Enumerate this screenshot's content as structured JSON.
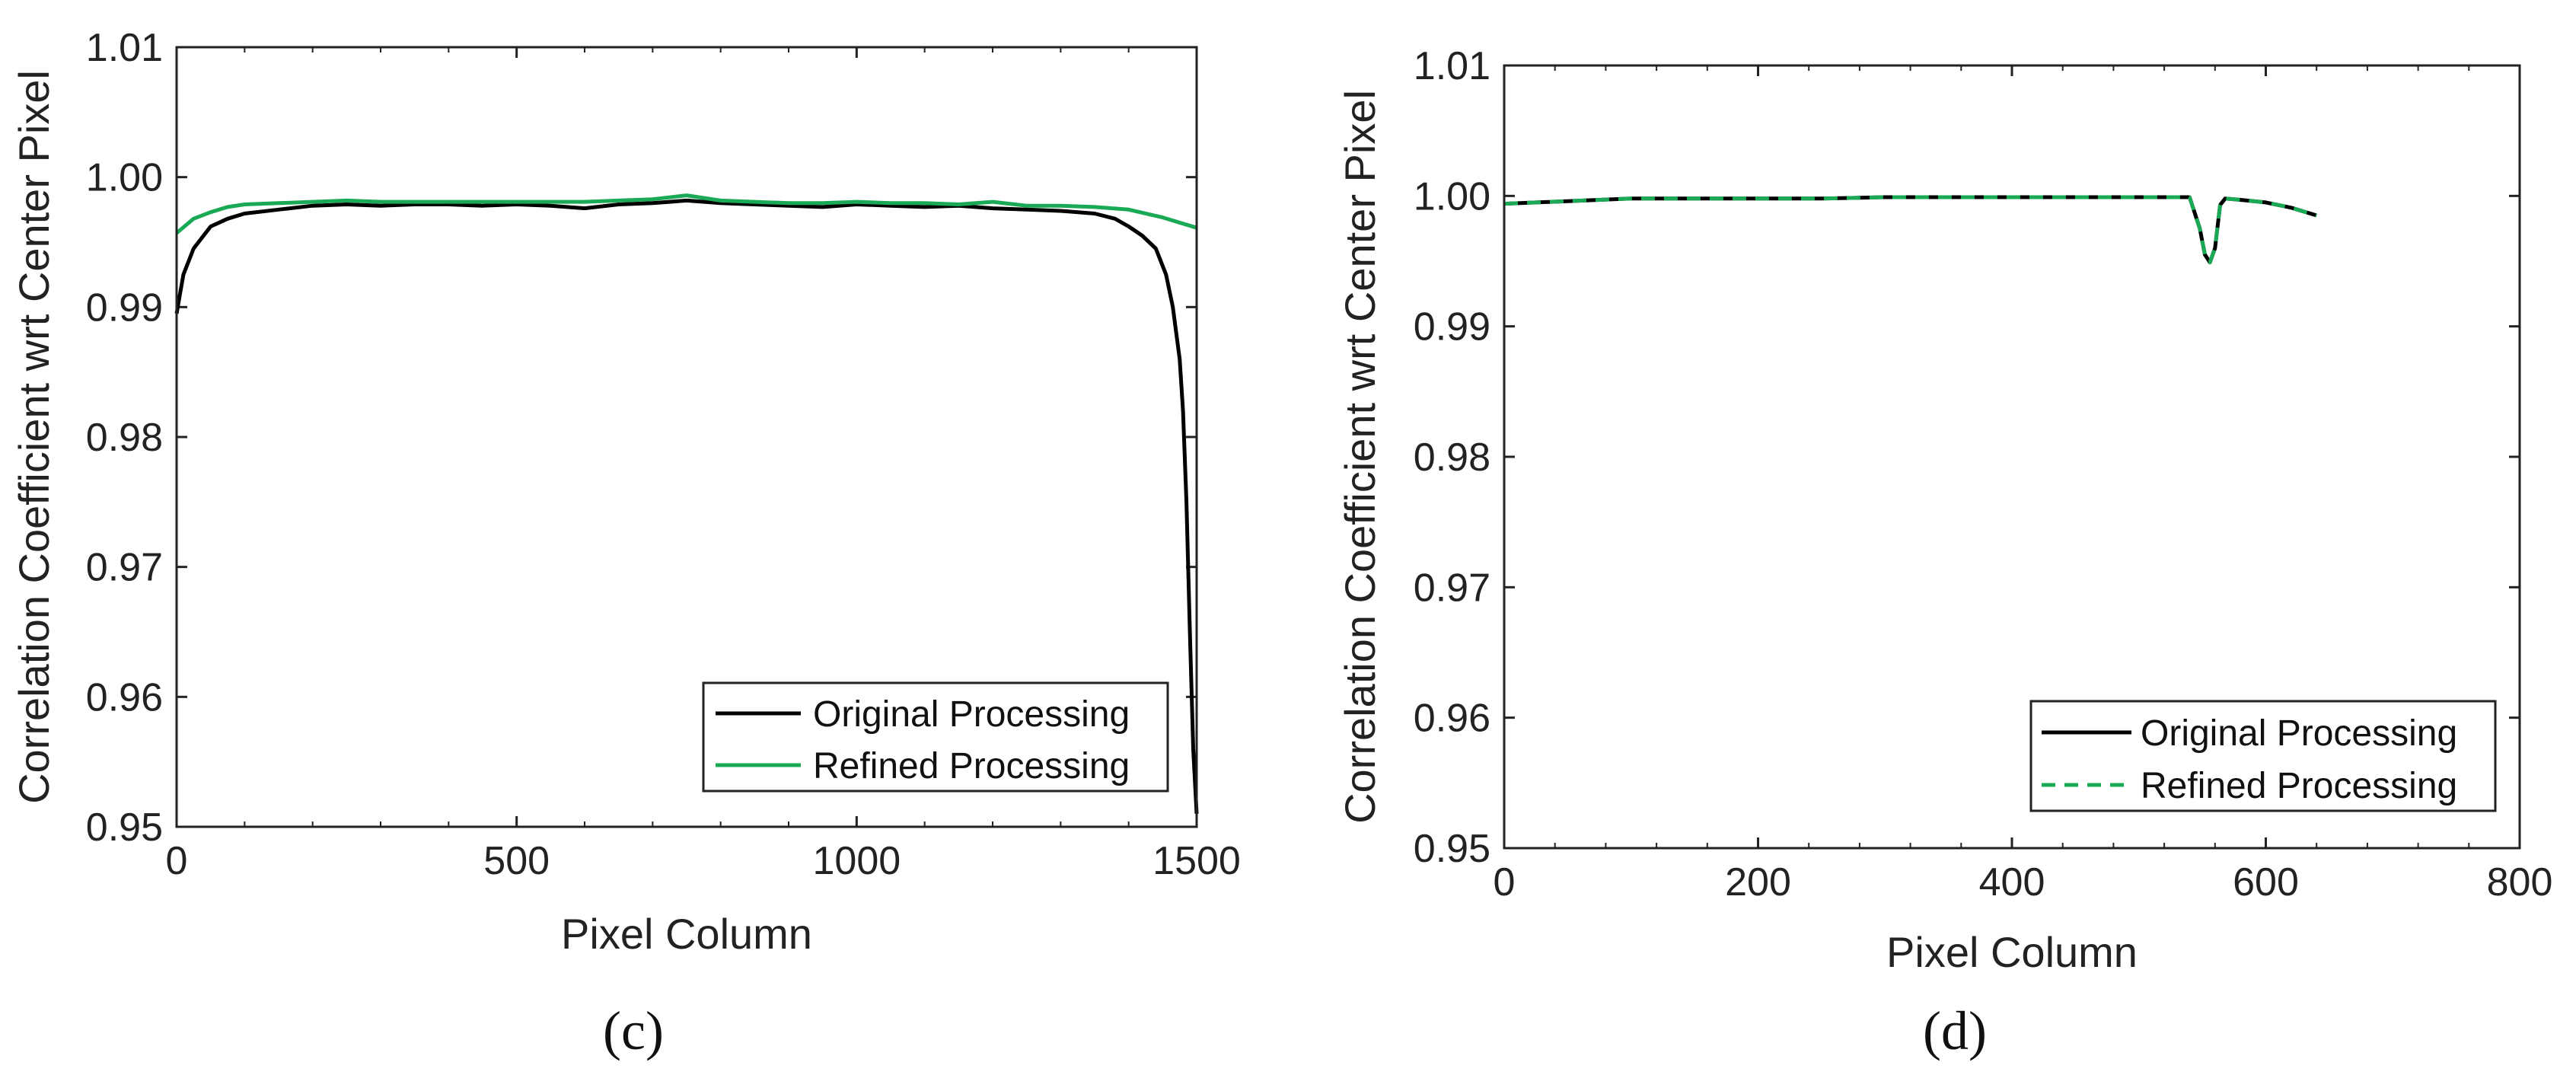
{
  "chart_data": [
    {
      "type": "line",
      "panel_label": "(c)",
      "xlabel": "Pixel Column",
      "ylabel": "Correlation Coefficient wrt Center Pixel",
      "xlim": [
        0,
        1500
      ],
      "ylim": [
        0.95,
        1.01
      ],
      "xticks": [
        "0",
        "500",
        "1000",
        "1500"
      ],
      "yticks": [
        "0.95",
        "0.96",
        "0.97",
        "0.98",
        "0.99",
        "1.00",
        "1.01"
      ],
      "legend_position": "bottom-right",
      "series": [
        {
          "name": "Original Processing",
          "color": "#000000",
          "dash": "solid",
          "x": [
            0,
            10,
            25,
            50,
            75,
            100,
            150,
            200,
            250,
            300,
            350,
            400,
            450,
            500,
            550,
            600,
            650,
            700,
            750,
            800,
            850,
            900,
            950,
            1000,
            1050,
            1100,
            1150,
            1200,
            1250,
            1300,
            1350,
            1380,
            1400,
            1420,
            1440,
            1455,
            1465,
            1475,
            1480,
            1485,
            1490,
            1495,
            1500
          ],
          "y": [
            0.9895,
            0.9925,
            0.9945,
            0.9962,
            0.9968,
            0.9972,
            0.9975,
            0.9978,
            0.9979,
            0.9978,
            0.9979,
            0.9979,
            0.9978,
            0.9979,
            0.9978,
            0.9976,
            0.9979,
            0.998,
            0.9982,
            0.998,
            0.9979,
            0.9978,
            0.9977,
            0.9979,
            0.9978,
            0.9977,
            0.9978,
            0.9976,
            0.9975,
            0.9974,
            0.9972,
            0.9968,
            0.9962,
            0.9955,
            0.9945,
            0.9925,
            0.99,
            0.986,
            0.982,
            0.975,
            0.965,
            0.956,
            0.951
          ]
        },
        {
          "name": "Refined Processing",
          "color": "#1aaa55",
          "dash": "solid",
          "x": [
            0,
            25,
            50,
            75,
            100,
            150,
            200,
            250,
            300,
            350,
            400,
            450,
            500,
            550,
            600,
            650,
            700,
            750,
            800,
            850,
            900,
            950,
            1000,
            1050,
            1100,
            1150,
            1200,
            1250,
            1300,
            1350,
            1400,
            1450,
            1500
          ],
          "y": [
            0.9957,
            0.9968,
            0.9973,
            0.9977,
            0.9979,
            0.998,
            0.9981,
            0.9982,
            0.9981,
            0.9981,
            0.9981,
            0.9981,
            0.9981,
            0.9981,
            0.9981,
            0.9982,
            0.9983,
            0.9986,
            0.9982,
            0.9981,
            0.998,
            0.998,
            0.9981,
            0.998,
            0.998,
            0.9979,
            0.9981,
            0.9978,
            0.9978,
            0.9977,
            0.9975,
            0.9969,
            0.9961
          ]
        }
      ]
    },
    {
      "type": "line",
      "panel_label": "(d)",
      "xlabel": "Pixel Column",
      "ylabel": "Correlation Coefficient wrt Center Pixel",
      "xlim": [
        0,
        800
      ],
      "ylim": [
        0.95,
        1.01
      ],
      "xticks": [
        "0",
        "200",
        "400",
        "600",
        "800"
      ],
      "yticks": [
        "0.95",
        "0.96",
        "0.97",
        "0.98",
        "0.99",
        "1.00",
        "1.01"
      ],
      "legend_position": "bottom-right",
      "series": [
        {
          "name": "Original Processing",
          "color": "#000000",
          "dash": "solid",
          "x": [
            0,
            50,
            100,
            150,
            200,
            250,
            300,
            350,
            400,
            450,
            500,
            540,
            548,
            552,
            556,
            560,
            564,
            568,
            580,
            600,
            620,
            640
          ],
          "y": [
            0.9994,
            0.9996,
            0.9998,
            0.9998,
            0.9998,
            0.9998,
            0.9999,
            0.9999,
            0.9999,
            0.9999,
            0.9999,
            0.9999,
            0.9975,
            0.9955,
            0.9949,
            0.996,
            0.9993,
            0.9998,
            0.9997,
            0.9995,
            0.9991,
            0.9985
          ]
        },
        {
          "name": "Refined Processing",
          "color": "#1aaa55",
          "dash": "dashed",
          "x": [
            0,
            50,
            100,
            150,
            200,
            250,
            300,
            350,
            400,
            450,
            500,
            540,
            548,
            552,
            556,
            560,
            564,
            568,
            580,
            600,
            620,
            640
          ],
          "y": [
            0.9994,
            0.9996,
            0.9998,
            0.9998,
            0.9998,
            0.9998,
            0.9999,
            0.9999,
            0.9999,
            0.9999,
            0.9999,
            0.9999,
            0.9975,
            0.9955,
            0.9949,
            0.996,
            0.9993,
            0.9998,
            0.9997,
            0.9995,
            0.9991,
            0.9985
          ]
        }
      ]
    }
  ]
}
